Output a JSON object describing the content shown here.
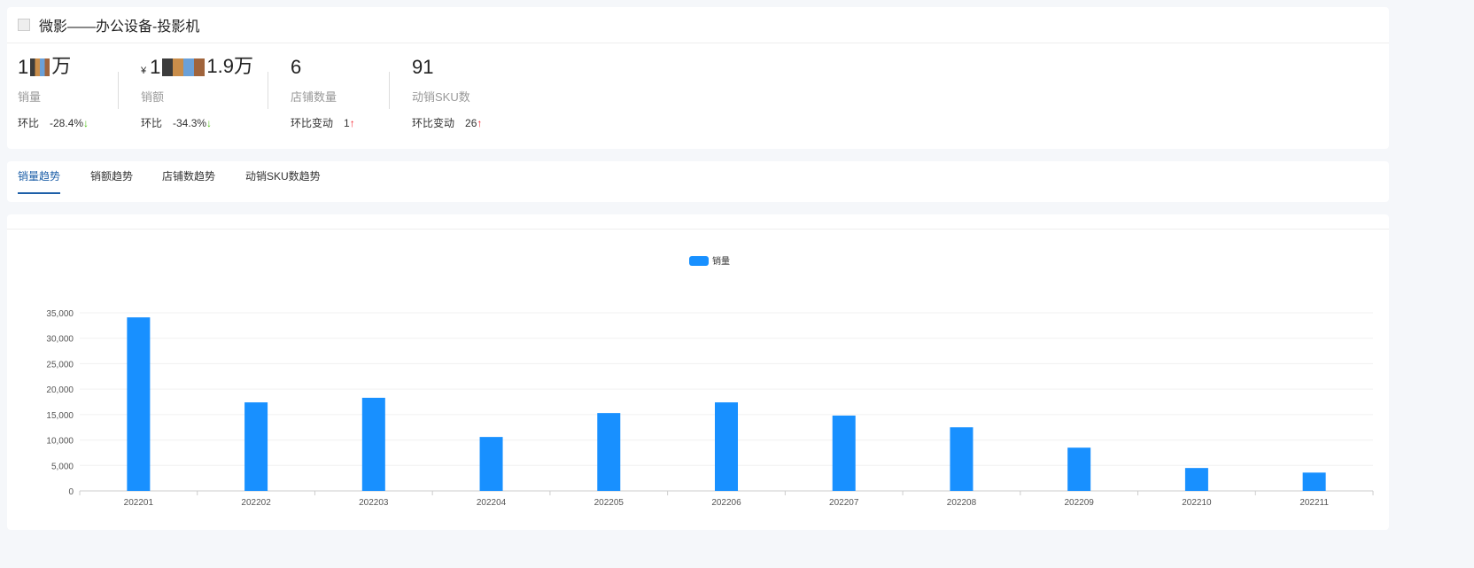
{
  "header": {
    "title": "微影——办公设备-投影机",
    "icon": "image-placeholder-icon"
  },
  "kpis": [
    {
      "value_prefix": "1",
      "value_suffix": "万",
      "label": "销量",
      "change_label": "环比",
      "change": "-28.4%",
      "direction": "down"
    },
    {
      "currency": "¥",
      "value_prefix": "1",
      "value_suffix": "1.9万",
      "label": "销额",
      "change_label": "环比",
      "change": "-34.3%",
      "direction": "down"
    },
    {
      "value": "6",
      "label": "店铺数量",
      "change_label": "环比变动",
      "change": "1",
      "direction": "up"
    },
    {
      "value": "91",
      "label": "动销SKU数",
      "change_label": "环比变动",
      "change": "26",
      "direction": "up"
    }
  ],
  "arrows": {
    "down": "↓",
    "up": "↑"
  },
  "tabs": [
    {
      "label": "销量趋势",
      "active": true
    },
    {
      "label": "销额趋势"
    },
    {
      "label": "店铺数趋势"
    },
    {
      "label": "动销SKU数趋势"
    }
  ],
  "colors": {
    "bar": "#1890ff",
    "accent": "#1d5fa8",
    "down": "#52c41a",
    "up": "#f5222d"
  },
  "chart_data": {
    "type": "bar",
    "legend": [
      "销量"
    ],
    "legend_position": "top-center",
    "categories": [
      "202201",
      "202202",
      "202203",
      "202204",
      "202205",
      "202206",
      "202207",
      "202208",
      "202209",
      "202210",
      "202211"
    ],
    "series": [
      {
        "name": "销量",
        "values": [
          34100,
          17400,
          18300,
          10600,
          15300,
          17400,
          14800,
          12500,
          8500,
          4500,
          3600
        ]
      }
    ],
    "yticks": [
      "0",
      "5,000",
      "10,000",
      "15,000",
      "20,000",
      "25,000",
      "30,000",
      "35,000"
    ],
    "ylim": [
      0,
      35000
    ],
    "grid": true
  }
}
